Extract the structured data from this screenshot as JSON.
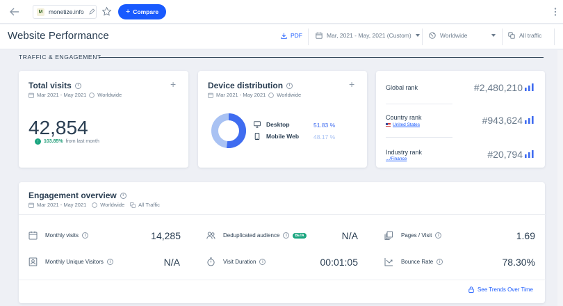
{
  "topbar": {
    "domain": "monetize.info",
    "favicon_letter": "M",
    "compare_label": "Compare"
  },
  "header": {
    "title": "Website Performance",
    "pdf_label": "PDF",
    "date_range": "Mar, 2021 - May, 2021 (Custom)",
    "region": "Worldwide",
    "traffic": "All traffic"
  },
  "section_label": "TRAFFIC & ENGAGEMENT",
  "total_visits": {
    "title": "Total visits",
    "date": "Mar 2021 - May 2021",
    "region": "Worldwide",
    "value": "42,854",
    "growth_pct": "103.85%",
    "growth_text": "from last month"
  },
  "device": {
    "title": "Device distribution",
    "date": "Mar 2021 - May 2021",
    "region": "Worldwide",
    "desktop_label": "Desktop",
    "desktop_pct": "51.83 %",
    "desktop_value": 51.83,
    "mobile_label": "Mobile Web",
    "mobile_pct": "48.17 %",
    "mobile_value": 48.17,
    "colors": {
      "desktop": "#3f6cf0",
      "mobile": "#a9c2f3"
    }
  },
  "ranks": {
    "global_label": "Global rank",
    "global_value": "#2,480,210",
    "country_label": "Country rank",
    "country_sub": "United States",
    "country_value": "#943,624",
    "industry_label": "Industry rank",
    "industry_sub": ".../Finance",
    "industry_value": "#20,794"
  },
  "engagement": {
    "title": "Engagement overview",
    "date": "Mar 2021 - May 2021",
    "region": "Worldwide",
    "traffic": "All Traffic",
    "monthly_visits_label": "Monthly visits",
    "monthly_visits": "14,285",
    "dedup_label": "Deduplicated audience",
    "beta": "BETA",
    "dedup_value": "N/A",
    "pages_label": "Pages / Visit",
    "pages_value": "1.69",
    "unique_label": "Monthly Unique Visitors",
    "unique_value": "N/A",
    "duration_label": "Visit Duration",
    "duration_value": "00:01:05",
    "bounce_label": "Bounce Rate",
    "bounce_value": "78.30%",
    "trends_label": "See Trends Over Time"
  }
}
